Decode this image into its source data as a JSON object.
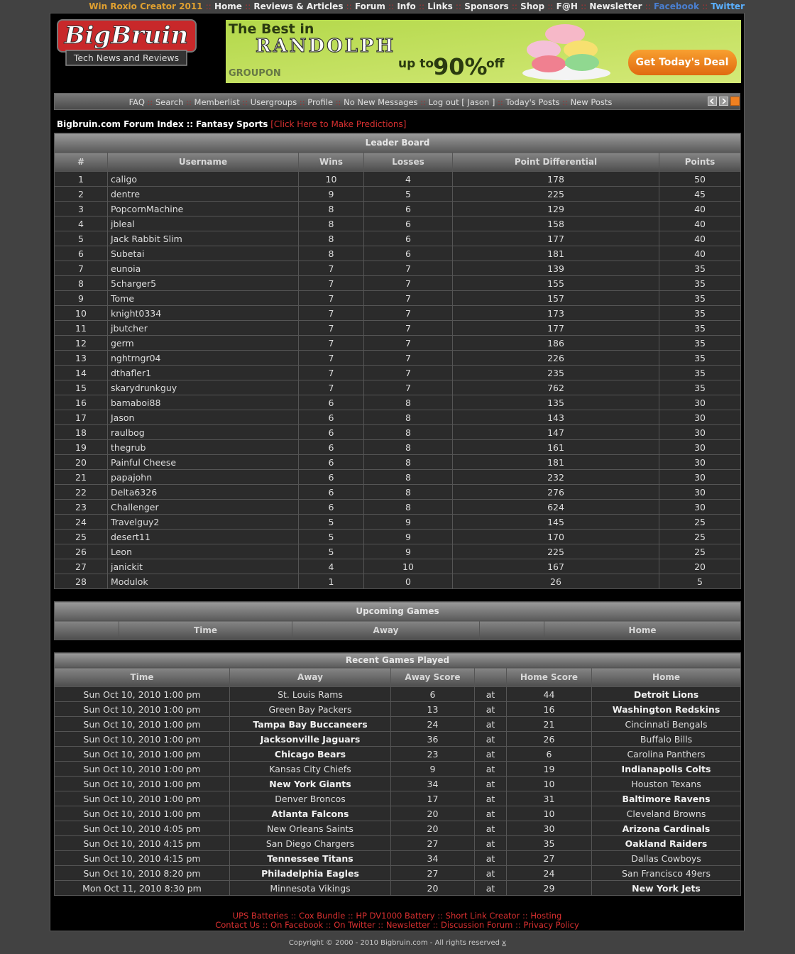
{
  "top_nav": {
    "separator": "::",
    "links": [
      {
        "text": "Win Roxio Creator 2011",
        "color": "#e0a030"
      },
      {
        "text": "Home",
        "color": "#eeeeee"
      },
      {
        "text": "Reviews & Articles",
        "color": "#eeeeee"
      },
      {
        "text": "Forum",
        "color": "#eeeeee"
      },
      {
        "text": "Info",
        "color": "#eeeeee"
      },
      {
        "text": "Links",
        "color": "#eeeeee"
      },
      {
        "text": "Sponsors",
        "color": "#eeeeee"
      },
      {
        "text": "Shop",
        "color": "#eeeeee"
      },
      {
        "text": "F@H",
        "color": "#eeeeee"
      },
      {
        "text": "Newsletter",
        "color": "#eeeeee"
      },
      {
        "text": "Facebook",
        "color": "#4a7fd0"
      },
      {
        "text": "Twitter",
        "color": "#5ab0ff"
      }
    ]
  },
  "logo": {
    "name": "BigBruin",
    "tagline": "Tech News and Reviews"
  },
  "ad": {
    "line1": "The Best in",
    "city": "RANDOLPH",
    "brand": "GROUPON",
    "upto": "up to",
    "percent": "90%",
    "off": "off",
    "button": "Get Today's Deal"
  },
  "forum_nav": {
    "separator": "::",
    "links": [
      "FAQ",
      "Search",
      "Memberlist",
      "Usergroups",
      "Profile",
      "No New Messages",
      "Log out [ Jason ]",
      "Today's Posts",
      "New Posts"
    ]
  },
  "breadcrumb": {
    "index": "Bigbruin.com Forum Index",
    "separator": "::",
    "forum": "Fantasy Sports",
    "action": "[Click Here to Make Predictions]"
  },
  "leaderboard": {
    "title": "Leader Board",
    "headers": [
      "#",
      "Username",
      "Wins",
      "Losses",
      "Point Differential",
      "Points"
    ],
    "rows": [
      [
        1,
        "caligo",
        10,
        4,
        178,
        50
      ],
      [
        2,
        "dentre",
        9,
        5,
        225,
        45
      ],
      [
        3,
        "PopcornMachine",
        8,
        6,
        129,
        40
      ],
      [
        4,
        "jbleal",
        8,
        6,
        158,
        40
      ],
      [
        5,
        "Jack Rabbit Slim",
        8,
        6,
        177,
        40
      ],
      [
        6,
        "Subetai",
        8,
        6,
        181,
        40
      ],
      [
        7,
        "eunoia",
        7,
        7,
        139,
        35
      ],
      [
        8,
        "5charger5",
        7,
        7,
        155,
        35
      ],
      [
        9,
        "Tome",
        7,
        7,
        157,
        35
      ],
      [
        10,
        "knight0334",
        7,
        7,
        173,
        35
      ],
      [
        11,
        "jbutcher",
        7,
        7,
        177,
        35
      ],
      [
        12,
        "germ",
        7,
        7,
        186,
        35
      ],
      [
        13,
        "nghtrngr04",
        7,
        7,
        226,
        35
      ],
      [
        14,
        "dthafler1",
        7,
        7,
        235,
        35
      ],
      [
        15,
        "skarydrunkguy",
        7,
        7,
        762,
        35
      ],
      [
        16,
        "bamaboi88",
        6,
        8,
        135,
        30
      ],
      [
        17,
        "Jason",
        6,
        8,
        143,
        30
      ],
      [
        18,
        "raulbog",
        6,
        8,
        147,
        30
      ],
      [
        19,
        "thegrub",
        6,
        8,
        161,
        30
      ],
      [
        20,
        "Painful Cheese",
        6,
        8,
        181,
        30
      ],
      [
        21,
        "papajohn",
        6,
        8,
        232,
        30
      ],
      [
        22,
        "Delta6326",
        6,
        8,
        276,
        30
      ],
      [
        23,
        "Challenger",
        6,
        8,
        624,
        30
      ],
      [
        24,
        "Travelguy2",
        5,
        9,
        145,
        25
      ],
      [
        25,
        "desert11",
        5,
        9,
        170,
        25
      ],
      [
        26,
        "Leon",
        5,
        9,
        225,
        25
      ],
      [
        27,
        "janickit",
        4,
        10,
        167,
        20
      ],
      [
        28,
        "Modulok",
        1,
        0,
        26,
        5
      ]
    ]
  },
  "upcoming": {
    "title": "Upcoming Games",
    "headers": [
      null,
      "Time",
      "Away",
      null,
      "Home"
    ]
  },
  "recent": {
    "title": "Recent Games Played",
    "headers": [
      "Time",
      "Away",
      "Away Score",
      null,
      "Home Score",
      "Home"
    ],
    "rows": [
      {
        "time": "Sun Oct 10, 2010 1:00 pm",
        "away": "St. Louis Rams",
        "away_score": 6,
        "at": "at",
        "home_score": 44,
        "home": "Detroit Lions",
        "winner": "home"
      },
      {
        "time": "Sun Oct 10, 2010 1:00 pm",
        "away": "Green Bay Packers",
        "away_score": 13,
        "at": "at",
        "home_score": 16,
        "home": "Washington Redskins",
        "winner": "home"
      },
      {
        "time": "Sun Oct 10, 2010 1:00 pm",
        "away": "Tampa Bay Buccaneers",
        "away_score": 24,
        "at": "at",
        "home_score": 21,
        "home": "Cincinnati Bengals",
        "winner": "away"
      },
      {
        "time": "Sun Oct 10, 2010 1:00 pm",
        "away": "Jacksonville Jaguars",
        "away_score": 36,
        "at": "at",
        "home_score": 26,
        "home": "Buffalo Bills",
        "winner": "away"
      },
      {
        "time": "Sun Oct 10, 2010 1:00 pm",
        "away": "Chicago Bears",
        "away_score": 23,
        "at": "at",
        "home_score": 6,
        "home": "Carolina Panthers",
        "winner": "away"
      },
      {
        "time": "Sun Oct 10, 2010 1:00 pm",
        "away": "Kansas City Chiefs",
        "away_score": 9,
        "at": "at",
        "home_score": 19,
        "home": "Indianapolis Colts",
        "winner": "home"
      },
      {
        "time": "Sun Oct 10, 2010 1:00 pm",
        "away": "New York Giants",
        "away_score": 34,
        "at": "at",
        "home_score": 10,
        "home": "Houston Texans",
        "winner": "away"
      },
      {
        "time": "Sun Oct 10, 2010 1:00 pm",
        "away": "Denver Broncos",
        "away_score": 17,
        "at": "at",
        "home_score": 31,
        "home": "Baltimore Ravens",
        "winner": "home"
      },
      {
        "time": "Sun Oct 10, 2010 1:00 pm",
        "away": "Atlanta Falcons",
        "away_score": 20,
        "at": "at",
        "home_score": 10,
        "home": "Cleveland Browns",
        "winner": "away"
      },
      {
        "time": "Sun Oct 10, 2010 4:05 pm",
        "away": "New Orleans Saints",
        "away_score": 20,
        "at": "at",
        "home_score": 30,
        "home": "Arizona Cardinals",
        "winner": "home"
      },
      {
        "time": "Sun Oct 10, 2010 4:15 pm",
        "away": "San Diego Chargers",
        "away_score": 27,
        "at": "at",
        "home_score": 35,
        "home": "Oakland Raiders",
        "winner": "home"
      },
      {
        "time": "Sun Oct 10, 2010 4:15 pm",
        "away": "Tennessee Titans",
        "away_score": 34,
        "at": "at",
        "home_score": 27,
        "home": "Dallas Cowboys",
        "winner": "away"
      },
      {
        "time": "Sun Oct 10, 2010 8:20 pm",
        "away": "Philadelphia Eagles",
        "away_score": 27,
        "at": "at",
        "home_score": 24,
        "home": "San Francisco 49ers",
        "winner": "away"
      },
      {
        "time": "Mon Oct 11, 2010 8:30 pm",
        "away": "Minnesota Vikings",
        "away_score": 20,
        "at": "at",
        "home_score": 29,
        "home": "New York Jets",
        "winner": "home"
      }
    ]
  },
  "footer": {
    "separator": "::",
    "row1": [
      "UPS Batteries",
      "Cox Bundle",
      "HP DV1000 Battery",
      "Short Link Creator",
      "Hosting"
    ],
    "row2": [
      "Contact Us",
      "On Facebook",
      "On Twitter",
      "Newsletter",
      "Discussion Forum",
      "Privacy Policy"
    ],
    "copyright": "Copyright © 2000 - 2010 Bigbruin.com - All rights reserved",
    "copyright_link": "x"
  }
}
